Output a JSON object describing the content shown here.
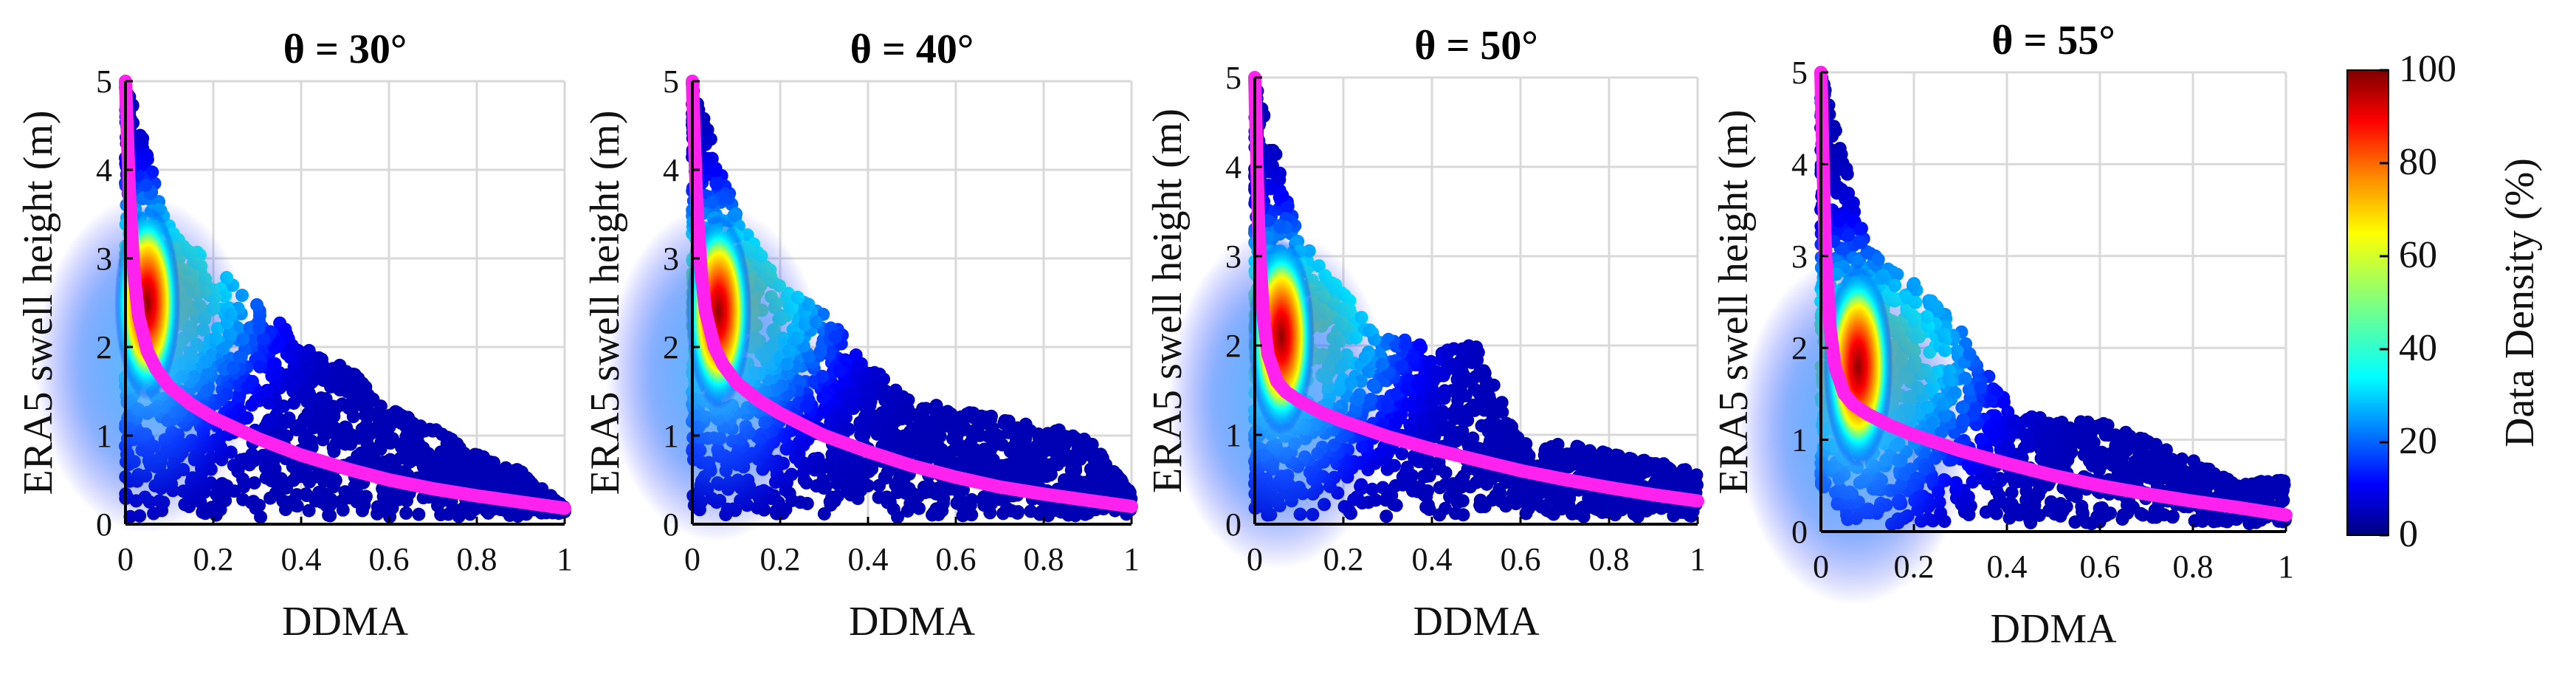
{
  "colors": {
    "fit_curve": "#ff22ee",
    "grid": "#d9d9d9",
    "axis": "#000000",
    "colormap": [
      "#00007f",
      "#0000ff",
      "#007fff",
      "#00ffff",
      "#7fff7f",
      "#ffff00",
      "#ff7f00",
      "#ff0000",
      "#7f0000"
    ]
  },
  "chart_data": [
    {
      "type": "scatter",
      "title": "θ = 30°",
      "xlabel": "DDMA",
      "ylabel": "ERA5 swell height (m)",
      "xlim": [
        0,
        1
      ],
      "ylim": [
        0,
        5
      ],
      "xticks": [
        0,
        0.2,
        0.4,
        0.6,
        0.8,
        1
      ],
      "xtick_labels": [
        "0",
        "0.2",
        "0.4",
        "0.6",
        "0.8",
        "1"
      ],
      "yticks": [
        0,
        1,
        2,
        3,
        4,
        5
      ],
      "ytick_labels": [
        "0",
        "1",
        "2",
        "3",
        "4",
        "5"
      ],
      "fit_curve": {
        "x": [
          0,
          0.005,
          0.01,
          0.02,
          0.03,
          0.05,
          0.07,
          0.1,
          0.15,
          0.2,
          0.3,
          0.4,
          0.5,
          0.6,
          0.7,
          0.8,
          0.9,
          1.0
        ],
        "y": [
          5.0,
          4.3,
          3.6,
          2.8,
          2.35,
          1.95,
          1.75,
          1.55,
          1.35,
          1.2,
          0.97,
          0.78,
          0.63,
          0.5,
          0.4,
          0.32,
          0.25,
          0.18
        ]
      },
      "density_peak": {
        "x": 0.05,
        "y": 2.5
      },
      "scatter_envelope": {
        "x": [
          0,
          0.1,
          0.2,
          0.3,
          0.4,
          0.5,
          0.6,
          0.7,
          0.8,
          0.9,
          1.0
        ],
        "ymax": [
          5.0,
          3.4,
          2.9,
          2.6,
          2.0,
          1.8,
          1.3,
          1.1,
          0.8,
          0.6,
          0.2
        ]
      }
    },
    {
      "type": "scatter",
      "title": "θ = 40°",
      "xlabel": "DDMA",
      "ylabel": "ERA5 swell height (m)",
      "xlim": [
        0,
        1
      ],
      "ylim": [
        0,
        5
      ],
      "xticks": [
        0,
        0.2,
        0.4,
        0.6,
        0.8,
        1
      ],
      "xtick_labels": [
        "0",
        "0.2",
        "0.4",
        "0.6",
        "0.8",
        "1"
      ],
      "yticks": [
        0,
        1,
        2,
        3,
        4,
        5
      ],
      "ytick_labels": [
        "0",
        "1",
        "2",
        "3",
        "4",
        "5"
      ],
      "fit_curve": {
        "x": [
          0,
          0.005,
          0.01,
          0.02,
          0.03,
          0.05,
          0.07,
          0.1,
          0.15,
          0.2,
          0.3,
          0.4,
          0.5,
          0.6,
          0.7,
          0.8,
          0.9,
          1.0
        ],
        "y": [
          5.0,
          4.3,
          3.6,
          2.85,
          2.4,
          2.0,
          1.8,
          1.6,
          1.4,
          1.25,
          1.0,
          0.82,
          0.66,
          0.53,
          0.42,
          0.34,
          0.27,
          0.2
        ]
      },
      "density_peak": {
        "x": 0.06,
        "y": 2.4
      },
      "scatter_envelope": {
        "x": [
          0,
          0.1,
          0.2,
          0.3,
          0.4,
          0.5,
          0.6,
          0.7,
          0.8,
          0.9,
          1.0
        ],
        "ymax": [
          5.0,
          3.5,
          2.7,
          2.4,
          1.8,
          1.4,
          1.3,
          1.2,
          1.1,
          1.0,
          0.35
        ]
      }
    },
    {
      "type": "scatter",
      "title": "θ = 50°",
      "xlabel": "DDMA",
      "ylabel": "ERA5 swell height (m)",
      "xlim": [
        0,
        1
      ],
      "ylim": [
        0,
        5
      ],
      "xticks": [
        0,
        0.2,
        0.4,
        0.6,
        0.8,
        1
      ],
      "xtick_labels": [
        "0",
        "0.2",
        "0.4",
        "0.6",
        "0.8",
        "1"
      ],
      "yticks": [
        0,
        1,
        2,
        3,
        4,
        5
      ],
      "ytick_labels": [
        "0",
        "1",
        "2",
        "3",
        "4",
        "5"
      ],
      "fit_curve": {
        "x": [
          0,
          0.005,
          0.01,
          0.02,
          0.03,
          0.05,
          0.07,
          0.1,
          0.15,
          0.2,
          0.3,
          0.4,
          0.5,
          0.6,
          0.7,
          0.8,
          0.9,
          1.0
        ],
        "y": [
          5.0,
          4.0,
          3.1,
          2.3,
          1.9,
          1.6,
          1.48,
          1.38,
          1.25,
          1.15,
          0.98,
          0.84,
          0.72,
          0.6,
          0.5,
          0.41,
          0.33,
          0.26
        ]
      },
      "density_peak": {
        "x": 0.06,
        "y": 2.1
      },
      "scatter_envelope": {
        "x": [
          0,
          0.1,
          0.2,
          0.3,
          0.4,
          0.5,
          0.6,
          0.7,
          0.8,
          0.9,
          1.0
        ],
        "ymax": [
          5.0,
          3.2,
          2.6,
          2.1,
          2.0,
          2.0,
          0.9,
          0.9,
          0.8,
          0.7,
          0.6
        ]
      }
    },
    {
      "type": "scatter",
      "title": "θ = 55°",
      "xlabel": "DDMA",
      "ylabel": "ERA5 swell height (m)",
      "xlim": [
        0,
        1
      ],
      "ylim": [
        0,
        5
      ],
      "xticks": [
        0,
        0.2,
        0.4,
        0.6,
        0.8,
        1
      ],
      "xtick_labels": [
        "0",
        "0.2",
        "0.4",
        "0.6",
        "0.8",
        "1"
      ],
      "yticks": [
        0,
        1,
        2,
        3,
        4,
        5
      ],
      "ytick_labels": [
        "0",
        "1",
        "2",
        "3",
        "4",
        "5"
      ],
      "fit_curve": {
        "x": [
          0,
          0.005,
          0.01,
          0.02,
          0.03,
          0.05,
          0.07,
          0.1,
          0.15,
          0.2,
          0.3,
          0.4,
          0.5,
          0.6,
          0.7,
          0.8,
          0.9,
          1.0
        ],
        "y": [
          5.0,
          3.9,
          3.0,
          2.2,
          1.8,
          1.5,
          1.38,
          1.28,
          1.15,
          1.05,
          0.88,
          0.74,
          0.61,
          0.5,
          0.41,
          0.33,
          0.26,
          0.18
        ]
      },
      "density_peak": {
        "x": 0.08,
        "y": 1.8
      },
      "scatter_envelope": {
        "x": [
          0,
          0.1,
          0.2,
          0.3,
          0.4,
          0.5,
          0.6,
          0.7,
          0.8,
          0.9,
          1.0
        ],
        "ymax": [
          5.0,
          3.1,
          2.7,
          2.2,
          1.4,
          1.2,
          1.2,
          1.0,
          0.8,
          0.5,
          0.6
        ]
      }
    }
  ],
  "colorbar": {
    "label": "Data Density (%)",
    "range": [
      0,
      100
    ],
    "ticks": [
      0,
      20,
      40,
      60,
      80,
      100
    ],
    "tick_labels": [
      "0",
      "20",
      "40",
      "60",
      "80",
      "100"
    ],
    "colormap": "jet"
  }
}
